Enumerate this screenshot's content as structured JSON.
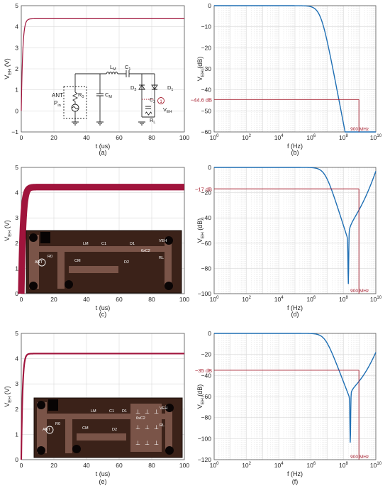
{
  "colors": {
    "time_trace": "#a0143c",
    "freq_trace": "#1f6fb4",
    "marker": "#a51d2d",
    "grid": "#d9d9d9",
    "pcb_board": "#3b2219",
    "pcb_trace": "#7a5448"
  },
  "chart_data": [
    {
      "id": "a",
      "type": "line",
      "caption": "(a)",
      "xlabel": "t (us)",
      "ylabel_main": "V",
      "ylabel_sub": "EH",
      "ylabel_unit": " (V)",
      "xlim": [
        0,
        100
      ],
      "ylim": [
        -1,
        5
      ],
      "xticks": [
        0,
        20,
        40,
        60,
        80,
        100
      ],
      "yticks": [
        -1,
        0,
        1,
        2,
        3,
        4,
        5
      ],
      "grid": true,
      "xscale": "linear",
      "series": [
        {
          "shape": "charge",
          "steady": 4.38,
          "tau": 0.9,
          "ripple": 0.02,
          "x": [
            0,
            0.5,
            1,
            2,
            3,
            5,
            10,
            100
          ],
          "y": [
            0,
            1.8,
            2.9,
            3.9,
            4.25,
            4.37,
            4.38,
            4.38
          ]
        }
      ],
      "inset": {
        "type": "schematic",
        "labels": {
          "ant": "ANT",
          "pin": "P",
          "pin_sub": "in",
          "r0": "R",
          "r0_sub": "0",
          "cm": "C",
          "cm_sub": "M",
          "lm": "L",
          "lm_sub": "M",
          "c1": "C",
          "c1_sub": "1",
          "d2": "D",
          "d2_sub": "2",
          "d1": "D",
          "d1_sub": "1",
          "c2": "C",
          "c2_sub": "2",
          "rl": "R",
          "rl_sub": "L",
          "veh": "V",
          "veh_sub": "EH",
          "mark": "1"
        }
      }
    },
    {
      "id": "b",
      "type": "line",
      "caption": "(b)",
      "xlabel": "f (Hz)",
      "ylabel_main": "V",
      "ylabel_sub": "EH",
      "ylabel_unit": " (dB)",
      "xscale": "log",
      "xlim_exp": [
        0,
        10
      ],
      "xtick_exps": [
        0,
        2,
        4,
        6,
        8,
        10
      ],
      "xtick_base": "10",
      "ylim": [
        -60,
        0
      ],
      "yticks": [
        0,
        -10,
        -20,
        -30,
        -40,
        -50,
        -60
      ],
      "grid": true,
      "series": [
        {
          "shape": "lowpass",
          "fc_exp": 6.6,
          "order": 2,
          "notch_exp": null
        }
      ],
      "annotations": {
        "level_label": "−44.6 dB",
        "level": -44.6,
        "freq_label": "900 MHz",
        "freq_exp": 8.954
      }
    },
    {
      "id": "c",
      "type": "line",
      "caption": "(c)",
      "xlabel": "t (us)",
      "ylabel_main": "V",
      "ylabel_sub": "EH",
      "ylabel_unit": " (V)",
      "xlim": [
        0,
        100
      ],
      "ylim": [
        0,
        5
      ],
      "xticks": [
        0,
        20,
        40,
        60,
        80,
        100
      ],
      "yticks": [
        0,
        1,
        2,
        3,
        4,
        5
      ],
      "grid": true,
      "xscale": "linear",
      "series": [
        {
          "shape": "charge",
          "steady": 4.22,
          "tau": 1.1,
          "ripple": 0.13,
          "x": [
            0,
            0.5,
            1,
            2,
            3,
            5,
            10,
            100
          ],
          "y": [
            0,
            1.4,
            2.6,
            3.7,
            4.1,
            4.2,
            4.22,
            4.22
          ]
        }
      ],
      "inset": {
        "type": "pcb",
        "labels": {
          "ant": "ANT",
          "r0": "R0",
          "cm": "CM",
          "lm": "LM",
          "c1": "C1",
          "d1": "D1",
          "d2": "D2",
          "c2": "6xC2",
          "rl": "RL",
          "veh": "VEH"
        }
      }
    },
    {
      "id": "d",
      "type": "line",
      "caption": "(d)",
      "xlabel": "f (Hz)",
      "ylabel_main": "V",
      "ylabel_sub": "EH",
      "ylabel_unit": " (dB)",
      "xscale": "log",
      "xlim_exp": [
        0,
        10
      ],
      "xtick_exps": [
        0,
        2,
        4,
        6,
        8,
        10
      ],
      "xtick_base": "10",
      "ylim": [
        -100,
        0
      ],
      "yticks": [
        0,
        -20,
        -40,
        -60,
        -80,
        -100
      ],
      "grid": true,
      "series": [
        {
          "shape": "lowpass_notch",
          "fc_exp": 6.85,
          "order": 2,
          "notch_exp": 8.3,
          "notch_depth": -92,
          "end_level": -3
        }
      ],
      "annotations": {
        "level_label": "−17 dB",
        "level": -17,
        "freq_label": "900 MHz",
        "freq_exp": 8.954
      }
    },
    {
      "id": "e",
      "type": "line",
      "caption": "(e)",
      "xlabel": "t (us)",
      "ylabel_main": "V",
      "ylabel_sub": "EH",
      "ylabel_unit": " (V)",
      "xlim": [
        0,
        100
      ],
      "ylim": [
        0,
        5
      ],
      "xticks": [
        0,
        20,
        40,
        60,
        80,
        100
      ],
      "yticks": [
        0,
        1,
        2,
        3,
        4,
        5
      ],
      "grid": true,
      "xscale": "linear",
      "series": [
        {
          "shape": "charge",
          "steady": 4.2,
          "tau": 0.8,
          "ripple": 0.03,
          "x": [
            0,
            0.5,
            1,
            2,
            3,
            5,
            10,
            100
          ],
          "y": [
            0,
            1.9,
            3.0,
            3.95,
            4.15,
            4.2,
            4.2,
            4.2
          ]
        }
      ],
      "inset": {
        "type": "pcb",
        "labels": {
          "ant": "ANT",
          "r0": "R0",
          "cm": "CM",
          "lm": "LM",
          "c1": "C1",
          "d1": "D1",
          "d2": "D2",
          "c2": "6xC2",
          "rl": "RL",
          "veh": "VEH"
        }
      }
    },
    {
      "id": "f",
      "type": "line",
      "caption": "(f)",
      "xlabel": "f (Hz)",
      "ylabel_main": "V",
      "ylabel_sub": "EH",
      "ylabel_unit": " (dB)",
      "xscale": "log",
      "xlim_exp": [
        0,
        10
      ],
      "xtick_exps": [
        0,
        2,
        4,
        6,
        8,
        10
      ],
      "xtick_base": "10",
      "ylim": [
        -120,
        0
      ],
      "yticks": [
        0,
        -20,
        -40,
        -60,
        -80,
        -100,
        -120
      ],
      "grid": true,
      "series": [
        {
          "shape": "lowpass_notch",
          "fc_exp": 6.85,
          "order": 2,
          "notch_exp": 8.42,
          "notch_depth": -104,
          "end_level": -18
        }
      ],
      "annotations": {
        "level_label": "−35 dB",
        "level": -35,
        "freq_label": "900 MHz",
        "freq_exp": 8.954
      }
    }
  ]
}
